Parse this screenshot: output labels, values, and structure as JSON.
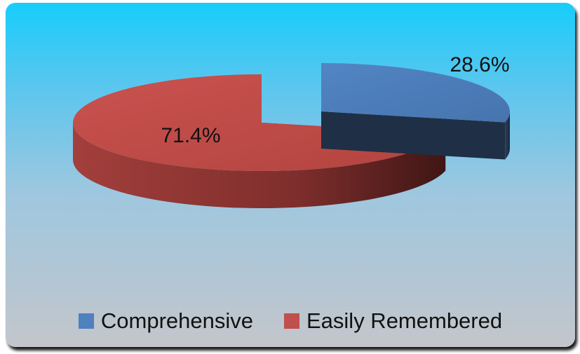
{
  "chart_data": {
    "type": "pie",
    "variant": "3d-exploded",
    "title": "",
    "slices": [
      {
        "name": "Comprehensive",
        "value": 28.6,
        "label": "28.6%",
        "color": "#4f81bd",
        "side_color": "#24354d"
      },
      {
        "name": "Easily Remembered",
        "value": 71.4,
        "label": "71.4%",
        "color": "#c0504d",
        "side_color": "#7a2d2b"
      }
    ],
    "legend_position": "bottom"
  }
}
